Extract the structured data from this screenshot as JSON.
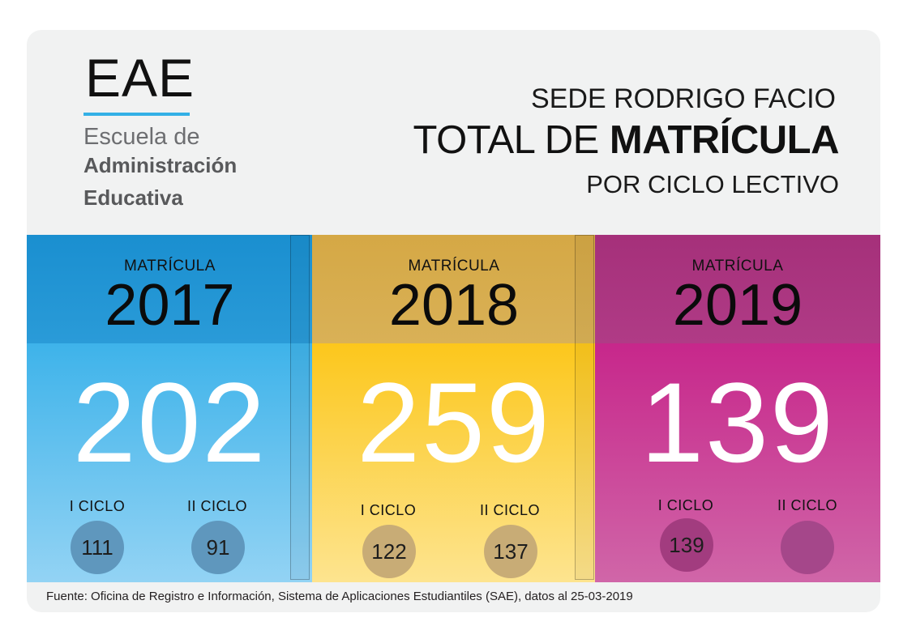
{
  "logo": {
    "acronym": "EAE",
    "line1": "Escuela de",
    "line2": "Administración",
    "line3": "Educativa",
    "accent_color": "#33b0e6"
  },
  "header": {
    "sede": "SEDE RODRIGO FACIO",
    "total_prefix": "TOTAL DE ",
    "total_bold": "MATRÍCULA",
    "subtitle": "POR CICLO LECTIVO"
  },
  "panels": [
    {
      "label": "MATRÍCULA",
      "year": "2017",
      "total": "202",
      "ciclo1_label": "I CICLO",
      "ciclo1_value": "111",
      "ciclo2_label": "II CICLO",
      "ciclo2_value": "91",
      "color": "#3eb3ea"
    },
    {
      "label": "MATRÍCULA",
      "year": "2018",
      "total": "259",
      "ciclo1_label": "I CICLO",
      "ciclo1_value": "122",
      "ciclo2_label": "II CICLO",
      "ciclo2_value": "137",
      "color": "#fcc71c"
    },
    {
      "label": "MATRÍCULA",
      "year": "2019",
      "total": "139",
      "ciclo1_label": "I CICLO",
      "ciclo1_value": "139",
      "ciclo2_label": "II CICLO",
      "ciclo2_value": "",
      "color": "#c7278b"
    }
  ],
  "footer": {
    "source": "Fuente: Oficina de Registro e Información, Sistema de Aplicaciones Estudiantiles (SAE), datos al 25-03-2019"
  }
}
